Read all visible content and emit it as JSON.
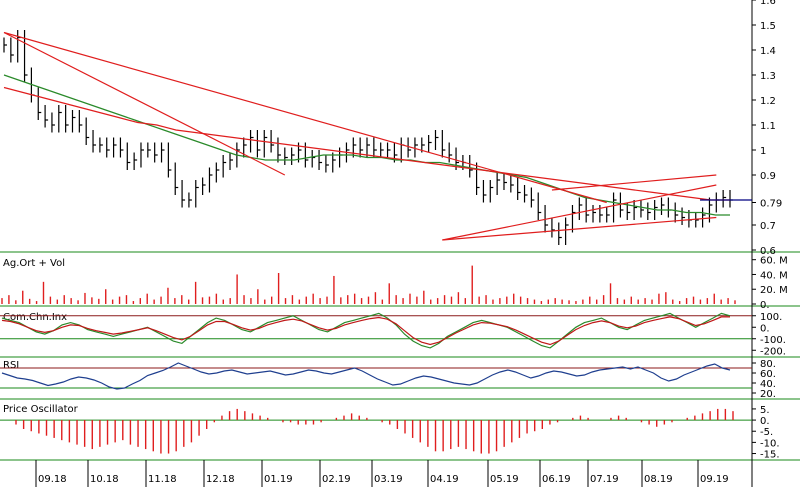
{
  "colors": {
    "price_bars": "#000000",
    "trend_lines": "#e01e1e",
    "ma_long": "#e01e1e",
    "ma_short": "#2a8a2a",
    "volume": "#e01e1e",
    "cci": "#2a8a2a",
    "cci_signal": "#c01818",
    "rsi": "#1f3f8f",
    "oscillator": "#e01e1e",
    "panel_border": "#1a8a1a",
    "level_lines": "#1a8a1a",
    "last_price_line": "#000080"
  },
  "panels": {
    "price": {
      "title": ""
    },
    "volume": {
      "title": "Ag.Ort + Vol"
    },
    "cci": {
      "title": "Com.Chn.Inx"
    },
    "rsi": {
      "title": "RSI"
    },
    "osc": {
      "title": "Price Oscillator"
    }
  },
  "chart_data": {
    "type": "line",
    "x_ticks": [
      "09.18",
      "10.18",
      "11.18",
      "12.18",
      "01.19",
      "02.19",
      "03.19",
      "04.19",
      "05.19",
      "06.19",
      "07.19",
      "08.19",
      "09.19"
    ],
    "price": {
      "y_ticks": [
        "1.6",
        "1.5",
        "1.4",
        "1.3",
        "1.2",
        "1.1",
        "1",
        "0.9",
        "0.79",
        "0.7",
        "0.6"
      ],
      "ylim": [
        0.6,
        1.6
      ],
      "close": [
        1.42,
        1.38,
        1.45,
        1.3,
        1.22,
        1.15,
        1.12,
        1.1,
        1.15,
        1.1,
        1.13,
        1.1,
        1.05,
        1.02,
        1.02,
        1.0,
        1.02,
        1.0,
        0.95,
        0.96,
        1.0,
        1.0,
        0.98,
        1.0,
        0.92,
        0.85,
        0.8,
        0.8,
        0.85,
        0.86,
        0.9,
        0.92,
        0.95,
        0.96,
        1.0,
        1.02,
        1.05,
        1.0,
        1.05,
        1.02,
        0.98,
        0.97,
        0.98,
        1.0,
        0.96,
        0.97,
        0.95,
        0.94,
        0.96,
        0.98,
        1.0,
        1.02,
        1.0,
        1.02,
        1.0,
        1.0,
        1.0,
        0.98,
        1.02,
        1.0,
        1.02,
        1.02,
        1.03,
        1.05,
        1.0,
        0.98,
        0.95,
        0.95,
        0.92,
        0.85,
        0.82,
        0.85,
        0.88,
        0.87,
        0.86,
        0.83,
        0.82,
        0.8,
        0.75,
        0.7,
        0.68,
        0.65,
        0.7,
        0.75,
        0.78,
        0.74,
        0.75,
        0.74,
        0.74,
        0.8,
        0.76,
        0.75,
        0.77,
        0.76,
        0.75,
        0.77,
        0.78,
        0.76,
        0.74,
        0.73,
        0.72,
        0.72,
        0.74,
        0.78,
        0.8,
        0.81,
        0.8
      ],
      "ma_short": [
        1.3,
        1.28,
        1.26,
        1.24,
        1.22,
        1.2,
        1.18,
        1.16,
        1.14,
        1.12,
        1.1,
        1.08,
        1.06,
        1.04,
        1.02,
        1.0,
        0.98,
        0.97,
        0.96,
        0.96,
        0.96,
        0.97,
        0.98,
        0.98,
        0.98,
        0.97,
        0.97,
        0.96,
        0.96,
        0.95,
        0.95,
        0.94,
        0.93,
        0.92,
        0.91,
        0.9,
        0.89,
        0.87,
        0.85,
        0.83,
        0.81,
        0.8,
        0.79,
        0.78,
        0.77,
        0.76,
        0.76,
        0.75,
        0.75,
        0.74,
        0.74
      ],
      "ma_long": [
        1.25,
        1.23,
        1.21,
        1.19,
        1.17,
        1.15,
        1.13,
        1.11,
        1.1,
        1.08,
        1.07,
        1.06,
        1.05,
        1.04,
        1.03,
        1.02,
        1.01,
        1.0,
        0.99,
        0.98,
        0.97,
        0.96,
        0.95,
        0.94,
        0.93,
        0.92,
        0.91,
        0.9,
        0.89,
        0.88,
        0.87,
        0.86,
        0.85,
        0.84,
        0.83,
        0.82,
        0.81,
        0.8,
        0.8
      ]
    },
    "volume": {
      "y_ticks": [
        "60. M",
        "40. M",
        "20. M",
        "0."
      ],
      "ylim": [
        0,
        65
      ],
      "values": [
        8,
        12,
        5,
        18,
        7,
        4,
        30,
        10,
        6,
        12,
        8,
        5,
        15,
        9,
        7,
        20,
        6,
        10,
        12,
        4,
        8,
        14,
        6,
        10,
        22,
        8,
        12,
        6,
        30,
        9,
        10,
        14,
        6,
        8,
        40,
        12,
        8,
        20,
        6,
        10,
        42,
        8,
        12,
        6,
        10,
        14,
        8,
        10,
        38,
        9,
        12,
        14,
        8,
        10,
        16,
        6,
        28,
        12,
        8,
        14,
        10,
        18,
        6,
        8,
        12,
        10,
        16,
        8,
        52,
        10,
        12,
        6,
        8,
        10,
        14,
        10,
        8,
        6,
        4,
        6,
        8,
        6,
        5,
        4,
        6,
        10,
        6,
        12,
        28,
        8,
        6,
        10,
        6,
        8,
        6,
        14,
        16,
        6,
        4,
        8,
        10,
        6,
        8,
        14,
        6,
        8,
        5
      ]
    },
    "cci": {
      "y_ticks": [
        "100.",
        "0.",
        "-100.",
        "-200."
      ],
      "ylim": [
        -250,
        150
      ],
      "values": [
        80,
        60,
        40,
        0,
        -40,
        -60,
        -30,
        20,
        40,
        20,
        -20,
        -40,
        -60,
        -80,
        -60,
        -40,
        -20,
        0,
        -40,
        -80,
        -120,
        -140,
        -80,
        -20,
        40,
        80,
        60,
        20,
        -20,
        -40,
        0,
        40,
        60,
        80,
        100,
        60,
        20,
        -20,
        -40,
        0,
        40,
        60,
        80,
        100,
        120,
        80,
        20,
        -60,
        -120,
        -160,
        -180,
        -140,
        -80,
        -40,
        0,
        40,
        60,
        40,
        20,
        0,
        -40,
        -80,
        -120,
        -160,
        -180,
        -120,
        -60,
        0,
        40,
        60,
        80,
        40,
        0,
        -20,
        20,
        60,
        80,
        100,
        120,
        80,
        40,
        0,
        40,
        80,
        120,
        100
      ],
      "signal": [
        60,
        50,
        30,
        0,
        -30,
        -45,
        -30,
        0,
        20,
        15,
        -10,
        -30,
        -45,
        -60,
        -50,
        -35,
        -20,
        -5,
        -30,
        -60,
        -90,
        -110,
        -80,
        -30,
        20,
        50,
        50,
        25,
        -5,
        -25,
        -10,
        20,
        40,
        60,
        70,
        55,
        25,
        -5,
        -25,
        -10,
        20,
        40,
        60,
        75,
        85,
        70,
        30,
        -30,
        -90,
        -130,
        -150,
        -130,
        -90,
        -50,
        -15,
        20,
        40,
        35,
        20,
        5,
        -25,
        -60,
        -95,
        -130,
        -150,
        -120,
        -70,
        -20,
        15,
        40,
        55,
        40,
        10,
        -5,
        10,
        40,
        60,
        75,
        90,
        75,
        45,
        15,
        30,
        60,
        90,
        90
      ]
    },
    "rsi": {
      "y_ticks": [
        "80.",
        "60.",
        "40.",
        "20."
      ],
      "ylim": [
        10,
        90
      ],
      "values": [
        60,
        55,
        50,
        48,
        45,
        40,
        35,
        38,
        42,
        48,
        52,
        50,
        46,
        40,
        32,
        28,
        30,
        38,
        45,
        55,
        60,
        65,
        72,
        80,
        74,
        68,
        62,
        58,
        60,
        64,
        66,
        62,
        58,
        60,
        62,
        64,
        60,
        56,
        58,
        62,
        66,
        64,
        60,
        58,
        62,
        66,
        70,
        64,
        56,
        48,
        42,
        36,
        38,
        44,
        50,
        54,
        52,
        48,
        44,
        40,
        38,
        36,
        40,
        48,
        56,
        62,
        66,
        62,
        56,
        50,
        54,
        60,
        64,
        62,
        58,
        54,
        56,
        62,
        66,
        68,
        70,
        72,
        68,
        72,
        66,
        60,
        50,
        44,
        48,
        56,
        62,
        68,
        74,
        78,
        70,
        66
      ]
    },
    "oscillator": {
      "y_ticks": [
        "5.",
        "0.",
        "-5.",
        "-10.",
        "-15."
      ],
      "ylim": [
        -17,
        9
      ],
      "values": [
        -2,
        -4,
        -5,
        -6,
        -7,
        -8,
        -9,
        -10,
        -11,
        -12,
        -13,
        -12,
        -11,
        -10,
        -9,
        -11,
        -12,
        -13,
        -14,
        -15,
        -15,
        -14,
        -12,
        -10,
        -7,
        -4,
        -1,
        2,
        4,
        5,
        4,
        3,
        2,
        1,
        0,
        -1,
        -1,
        -2,
        -2,
        -2,
        -1,
        0,
        1,
        2,
        3,
        2,
        1,
        0,
        -1,
        -2,
        -4,
        -6,
        -8,
        -10,
        -12,
        -14,
        -14,
        -13,
        -12,
        -13,
        -14,
        -15,
        -15,
        -14,
        -12,
        -10,
        -8,
        -6,
        -5,
        -4,
        -2,
        -1,
        0,
        1,
        2,
        1,
        0,
        0,
        1,
        2,
        1,
        0,
        -1,
        -2,
        -3,
        -2,
        -1,
        0,
        1,
        2,
        3,
        4,
        5,
        5,
        4
      ]
    }
  }
}
